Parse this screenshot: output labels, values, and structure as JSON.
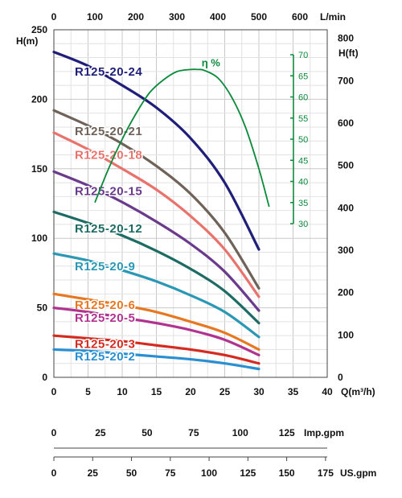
{
  "chart_data": {
    "type": "line",
    "units": {
      "top": "L/min",
      "left": "H(m)",
      "right": "H(ft)",
      "bottom": "Q(m³/h)",
      "imp": "Imp.gpm",
      "us": "US.gpm"
    },
    "axes": {
      "x_m3h": {
        "range": [
          0,
          40
        ],
        "ticks": [
          "0",
          "5",
          "10",
          "15",
          "20",
          "25",
          "30",
          "35",
          "40"
        ]
      },
      "x_lmin": {
        "range": [
          0,
          666.67
        ],
        "ticks": [
          "0",
          "100",
          "200",
          "300",
          "400",
          "500",
          "600"
        ]
      },
      "y_m": {
        "range": [
          0,
          250
        ],
        "ticks": [
          "0",
          "50",
          "100",
          "150",
          "200",
          "250"
        ]
      },
      "y_ft": {
        "range": [
          0,
          820.2
        ],
        "ticks": [
          "0",
          "100",
          "200",
          "300",
          "400",
          "500",
          "600",
          "700",
          "800"
        ]
      },
      "eff": {
        "range": [
          30,
          70
        ],
        "ticks": [
          "30",
          "35",
          "40",
          "45",
          "50",
          "55",
          "60",
          "65",
          "70"
        ]
      },
      "imp_gpm": {
        "range": [
          0,
          146.7
        ],
        "ticks": [
          "0",
          "25",
          "50",
          "75",
          "100",
          "125"
        ]
      },
      "us_gpm": {
        "range": [
          0,
          176.1
        ],
        "ticks": [
          "0",
          "25",
          "50",
          "75",
          "100",
          "125",
          "150",
          "175"
        ]
      }
    },
    "grid": true,
    "series": [
      {
        "name": "R125-20-24",
        "color": "#1f1f7a",
        "q": [
          0,
          5,
          10,
          15,
          20,
          25,
          30
        ],
        "h": [
          234,
          224,
          210,
          194,
          172,
          140,
          92
        ]
      },
      {
        "name": "R125-20-21",
        "color": "#6e6259",
        "q": [
          0,
          5,
          10,
          15,
          20,
          25,
          30
        ],
        "h": [
          192,
          181,
          168,
          152,
          132,
          104,
          64
        ]
      },
      {
        "name": "R125-20-18",
        "color": "#e8736c",
        "q": [
          0,
          5,
          10,
          15,
          20,
          25,
          30
        ],
        "h": [
          176,
          164,
          150,
          135,
          116,
          92,
          58
        ]
      },
      {
        "name": "R125-20-15",
        "color": "#6a3a8c",
        "q": [
          0,
          5,
          10,
          15,
          20,
          25,
          30
        ],
        "h": [
          148,
          138,
          126,
          112,
          96,
          76,
          48
        ]
      },
      {
        "name": "R125-20-12",
        "color": "#1e6b64",
        "q": [
          0,
          5,
          10,
          15,
          20,
          25,
          30
        ],
        "h": [
          119,
          111,
          102,
          91,
          78,
          62,
          39
        ]
      },
      {
        "name": "R125-20-9",
        "color": "#2a98b4",
        "q": [
          0,
          5,
          10,
          15,
          20,
          25,
          30
        ],
        "h": [
          89,
          84,
          77,
          69,
          59,
          47,
          29
        ]
      },
      {
        "name": "R125-20-6",
        "color": "#e87722",
        "q": [
          0,
          5,
          10,
          15,
          20,
          25,
          30
        ],
        "h": [
          60,
          56,
          52,
          47,
          40,
          32,
          20
        ]
      },
      {
        "name": "R125-20-5",
        "color": "#b0338f",
        "q": [
          0,
          5,
          10,
          15,
          20,
          25,
          30
        ],
        "h": [
          50,
          47,
          43,
          39,
          34,
          27,
          16
        ]
      },
      {
        "name": "R125-20-3",
        "color": "#d42a1f",
        "q": [
          0,
          5,
          10,
          15,
          20,
          25,
          30
        ],
        "h": [
          30,
          28,
          26,
          23,
          20,
          16,
          10
        ]
      },
      {
        "name": "R125-20-2",
        "color": "#2a8fd0",
        "q": [
          0,
          5,
          10,
          15,
          20,
          25,
          30
        ],
        "h": [
          20,
          19,
          17,
          15,
          13,
          10,
          6
        ]
      }
    ],
    "efficiency": {
      "label": "η %",
      "color": "#0a8a3a",
      "q": [
        6,
        8,
        10,
        12,
        14,
        16,
        18,
        20,
        21,
        22,
        24,
        26,
        28,
        30,
        31.5
      ],
      "eta": [
        35,
        43,
        50,
        56,
        61,
        64,
        66,
        66.5,
        66.5,
        66.3,
        64.5,
        60,
        53,
        43,
        34
      ]
    }
  }
}
